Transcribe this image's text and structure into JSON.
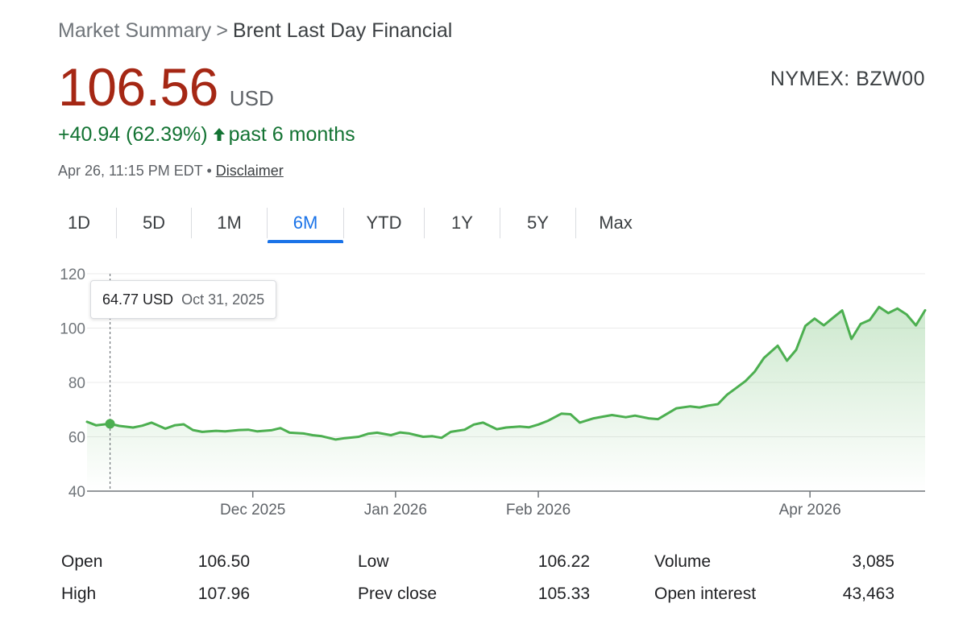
{
  "breadcrumb": {
    "parent": "Market Summary",
    "separator": ">",
    "current": "Brent Last Day Financial"
  },
  "price": {
    "value": "106.56",
    "currency": "USD"
  },
  "exchange": "NYMEX: BZW00",
  "change": {
    "amount": "+40.94",
    "percent": "(62.39%)",
    "arrow": "🡑",
    "period": "past 6 months"
  },
  "meta": {
    "timestamp": "Apr 26, 11:15 PM EDT",
    "bullet": "•",
    "disclaimer": "Disclaimer"
  },
  "tabs": [
    "1D",
    "5D",
    "1M",
    "6M",
    "YTD",
    "1Y",
    "5Y",
    "Max"
  ],
  "active_tab": "6M",
  "tooltip": {
    "value": "64.77 USD",
    "date": "Oct 31, 2025"
  },
  "colors": {
    "price": "#a52714",
    "positive": "#137333",
    "line": "#4caf50",
    "accent": "#1a73e8"
  },
  "stats": [
    {
      "label": "Open",
      "value": "106.50"
    },
    {
      "label": "High",
      "value": "107.96"
    },
    {
      "label": "Low",
      "value": "106.22"
    },
    {
      "label": "Prev close",
      "value": "105.33"
    },
    {
      "label": "Volume",
      "value": "3,085"
    },
    {
      "label": "Open interest",
      "value": "43,463"
    }
  ],
  "chart_data": {
    "type": "area",
    "title": "",
    "xlabel": "",
    "ylabel": "",
    "ylim": [
      40,
      120
    ],
    "y_ticks": [
      "120",
      "100",
      "80",
      "60",
      "40"
    ],
    "x_ticks": [
      "Dec 2025",
      "Jan 2026",
      "Feb 2026",
      "Apr 2026"
    ],
    "x_tick_dates": [
      "2025-12-01",
      "2026-01-01",
      "2026-02-01",
      "2026-04-01"
    ],
    "xlim": [
      "2025-10-26",
      "2026-04-26"
    ],
    "grid": true,
    "highlight": {
      "date": "2025-10-31",
      "value": 64.77
    },
    "series": [
      {
        "x": [
          "2025-10-26",
          "2025-10-28",
          "2025-10-31",
          "2025-11-02",
          "2025-11-05",
          "2025-11-07",
          "2025-11-09",
          "2025-11-12",
          "2025-11-14",
          "2025-11-16",
          "2025-11-18",
          "2025-11-20",
          "2025-11-23",
          "2025-11-25",
          "2025-11-28",
          "2025-11-30",
          "2025-12-02",
          "2025-12-05",
          "2025-12-07",
          "2025-12-09",
          "2025-12-12",
          "2025-12-14",
          "2025-12-16",
          "2025-12-19",
          "2025-12-21",
          "2025-12-24",
          "2025-12-26",
          "2025-12-28",
          "2025-12-31",
          "2026-01-02",
          "2026-01-04",
          "2026-01-07",
          "2026-01-09",
          "2026-01-11",
          "2026-01-13",
          "2026-01-16",
          "2026-01-18",
          "2026-01-20",
          "2026-01-23",
          "2026-01-25",
          "2026-01-28",
          "2026-01-30",
          "2026-02-01",
          "2026-02-03",
          "2026-02-06",
          "2026-02-08",
          "2026-02-10",
          "2026-02-13",
          "2026-02-15",
          "2026-02-17",
          "2026-02-20",
          "2026-02-22",
          "2026-02-25",
          "2026-02-27",
          "2026-03-01",
          "2026-03-03",
          "2026-03-06",
          "2026-03-08",
          "2026-03-10",
          "2026-03-12",
          "2026-03-14",
          "2026-03-16",
          "2026-03-18",
          "2026-03-20",
          "2026-03-22",
          "2026-03-25",
          "2026-03-27",
          "2026-03-29",
          "2026-03-31",
          "2026-04-02",
          "2026-04-04",
          "2026-04-06",
          "2026-04-08",
          "2026-04-10",
          "2026-04-12",
          "2026-04-14",
          "2026-04-16",
          "2026-04-18",
          "2026-04-20",
          "2026-04-22",
          "2026-04-24",
          "2026-04-26"
        ],
        "values": [
          65.5,
          64.2,
          64.8,
          64.0,
          63.4,
          64.1,
          65.2,
          63.0,
          64.2,
          64.6,
          62.5,
          61.8,
          62.2,
          62.0,
          62.5,
          62.6,
          62.0,
          62.4,
          63.2,
          61.5,
          61.2,
          60.6,
          60.2,
          59.0,
          59.5,
          60.0,
          61.1,
          61.5,
          60.6,
          61.6,
          61.2,
          60.0,
          60.2,
          59.6,
          61.8,
          62.6,
          64.5,
          65.2,
          62.8,
          63.4,
          63.8,
          63.5,
          64.5,
          65.8,
          68.5,
          68.3,
          65.2,
          66.8,
          67.4,
          68.0,
          67.2,
          67.8,
          66.8,
          66.5,
          68.5,
          70.5,
          71.2,
          70.8,
          71.5,
          72.0,
          75.5,
          78.0,
          80.5,
          84.0,
          89.0,
          93.5,
          88.0,
          92.0,
          100.8,
          103.5,
          101.0,
          103.8,
          106.5,
          96.0,
          101.5,
          103.0,
          107.8,
          105.5,
          107.2,
          105.0,
          101.0,
          106.56
        ]
      }
    ]
  }
}
